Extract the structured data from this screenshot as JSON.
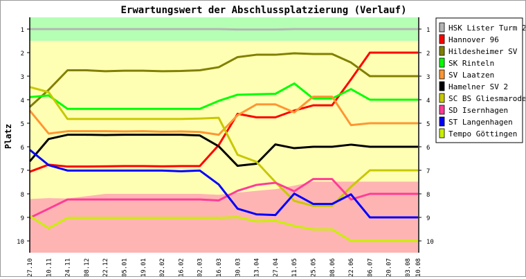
{
  "chart_data": {
    "type": "line",
    "title": "Erwartungswert der Abschlussplatzierung (Verlauf)",
    "ylabel": "Platz",
    "xlabel": "",
    "ylim": [
      1,
      10
    ],
    "y_inverted": true,
    "y_ticks": [
      "1",
      "2",
      "3",
      "4",
      "5",
      "6",
      "7",
      "8",
      "9",
      "10"
    ],
    "categories": [
      "27.10",
      "10.11",
      "24.11",
      "08.12",
      "22.12",
      "05.01",
      "19.01",
      "02.02",
      "16.02",
      "02.03",
      "16.03",
      "30.03",
      "13.04",
      "27.04",
      "11.05",
      "25.05",
      "08.06",
      "22.06",
      "06.07",
      "20.07",
      "03.08",
      "10.08"
    ],
    "legend_position": "right",
    "zones": {
      "promotion_until": 1.5,
      "promotion_color": "#b4ffb4",
      "middle_color": "#ffffb4",
      "relegation_color": "#ffb4b4",
      "relegation_from": [
        8.22,
        8.18,
        8.2,
        8.1,
        8.0,
        8.0,
        8.0,
        8.0,
        8.0,
        8.0,
        8.04,
        7.95,
        7.87,
        7.8,
        7.65,
        7.48,
        7.48,
        7.48,
        7.48,
        7.48,
        7.48,
        7.48
      ]
    },
    "series": [
      {
        "name": "HSK Lister Turm 2",
        "color": "#b4b4b4",
        "values": [
          1,
          1,
          1,
          1,
          1,
          1,
          1,
          1,
          1,
          1,
          1,
          1.02,
          1.02,
          1.02,
          1,
          1,
          1,
          1,
          1,
          1,
          1,
          1
        ]
      },
      {
        "name": "Hannover 96",
        "color": "#ff0000",
        "values": [
          7.06,
          6.76,
          6.84,
          6.84,
          6.83,
          6.82,
          6.82,
          6.83,
          6.82,
          6.82,
          5.93,
          4.6,
          4.75,
          4.75,
          4.46,
          4.24,
          4.24,
          3.14,
          2,
          2,
          2,
          2
        ]
      },
      {
        "name": "Hildesheimer SV",
        "color": "#808000",
        "values": [
          4.31,
          3.58,
          2.75,
          2.75,
          2.79,
          2.77,
          2.77,
          2.79,
          2.78,
          2.75,
          2.62,
          2.19,
          2.09,
          2.09,
          2.03,
          2.06,
          2.06,
          2.42,
          3,
          3,
          3,
          3
        ]
      },
      {
        "name": "SK Rinteln",
        "color": "#00ff00",
        "values": [
          3.89,
          3.82,
          4.39,
          4.39,
          4.39,
          4.39,
          4.39,
          4.39,
          4.39,
          4.39,
          4.05,
          3.79,
          3.77,
          3.75,
          3.31,
          3.95,
          3.95,
          3.55,
          4,
          4,
          4,
          4
        ]
      },
      {
        "name": "SV Laatzen",
        "color": "#ff9632",
        "values": [
          4.46,
          5.44,
          5.34,
          5.34,
          5.34,
          5.35,
          5.34,
          5.36,
          5.35,
          5.37,
          5.49,
          4.66,
          4.2,
          4.2,
          4.54,
          3.87,
          3.87,
          5.08,
          5,
          5,
          5,
          5
        ]
      },
      {
        "name": "Hamelner SV 2",
        "color": "#000000",
        "values": [
          6.62,
          5.67,
          5.49,
          5.49,
          5.5,
          5.49,
          5.49,
          5.49,
          5.49,
          5.52,
          5.98,
          6.81,
          6.72,
          5.9,
          6.06,
          6,
          6,
          5.91,
          6,
          6,
          6,
          6
        ]
      },
      {
        "name": "SC BS Gliesmarode",
        "color": "#c8c800",
        "values": [
          3.46,
          3.68,
          4.82,
          4.82,
          4.82,
          4.82,
          4.82,
          4.82,
          4.82,
          4.8,
          4.77,
          6.34,
          6.64,
          7.5,
          8.3,
          8.51,
          8.51,
          7.7,
          7,
          7,
          7,
          7
        ]
      },
      {
        "name": "SD Isernhagen",
        "color": "#ff3c96",
        "values": [
          9.02,
          8.63,
          8.24,
          8.24,
          8.24,
          8.24,
          8.24,
          8.24,
          8.24,
          8.24,
          8.28,
          7.87,
          7.62,
          7.53,
          7.89,
          7.37,
          7.37,
          8.24,
          8,
          8,
          8,
          8
        ]
      },
      {
        "name": "ST Langenhagen",
        "color": "#0000ff",
        "values": [
          6.13,
          6.78,
          7.01,
          7.01,
          7.01,
          7.01,
          7.01,
          7.01,
          7.04,
          7.01,
          7.6,
          8.63,
          8.87,
          8.9,
          7.99,
          8.43,
          8.43,
          8.02,
          9,
          9,
          9,
          9
        ]
      },
      {
        "name": "Tempo Göttingen",
        "color": "#c8f000",
        "values": [
          8.94,
          9.46,
          9.02,
          9.02,
          9.02,
          9.02,
          9.02,
          9.02,
          9.02,
          9.02,
          9.02,
          8.99,
          9.17,
          9.14,
          9.36,
          9.51,
          9.51,
          10,
          10,
          10,
          10,
          10
        ]
      }
    ]
  }
}
